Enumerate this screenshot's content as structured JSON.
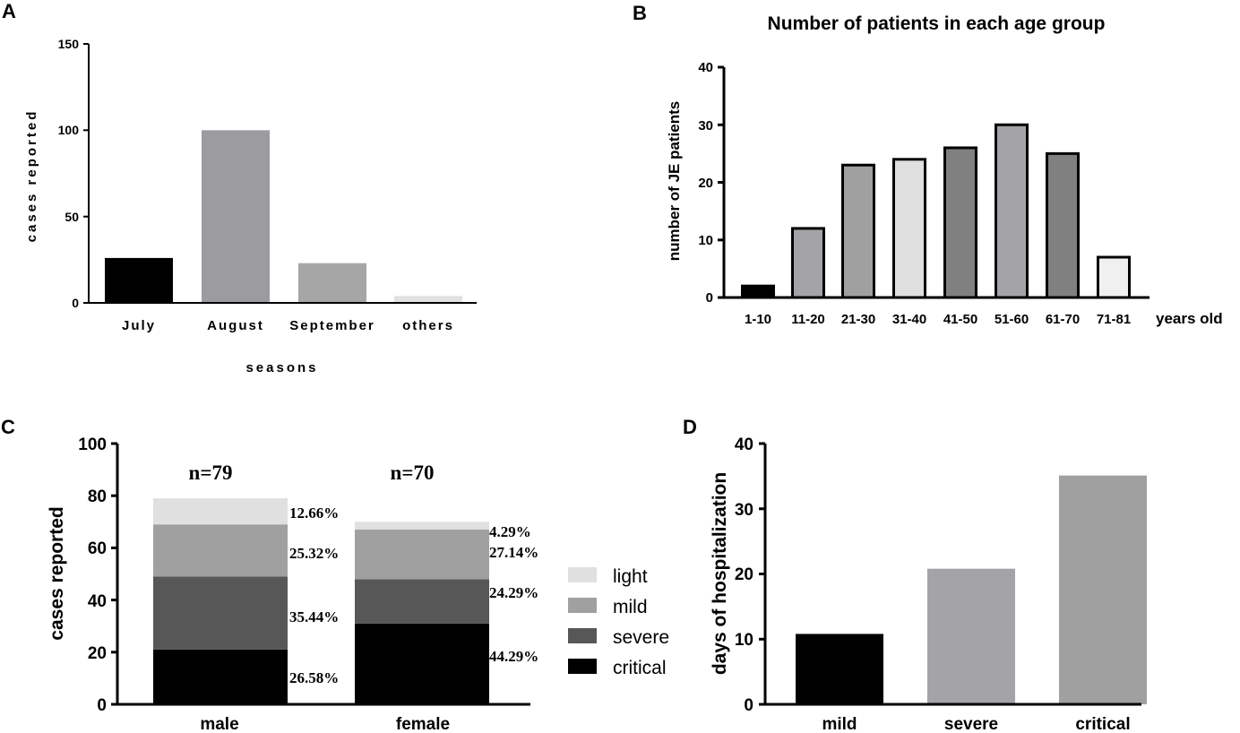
{
  "chart_data": [
    {
      "panel": "A",
      "type": "bar",
      "title": "",
      "xlabel": "seasons",
      "ylabel": "cases reported",
      "categories": [
        "July",
        "August",
        "September",
        "others"
      ],
      "values": [
        26,
        100,
        23,
        4
      ],
      "colors": [
        "#000000",
        "#9c9ca0",
        "#a6a6a6",
        "#e2e2e2"
      ],
      "ylim": [
        0,
        150
      ],
      "yticks": [
        "0",
        "50",
        "100",
        "150"
      ]
    },
    {
      "panel": "B",
      "type": "bar",
      "title": "Number of patients in each age group",
      "xlabel": "years old",
      "ylabel": "number of JE patients",
      "categories": [
        "1-10",
        "11-20",
        "21-30",
        "31-40",
        "41-50",
        "51-60",
        "61-70",
        "71-81"
      ],
      "values": [
        2,
        12,
        23,
        24,
        26,
        30,
        25,
        7
      ],
      "colors": [
        "#000000",
        "#a3a3a8",
        "#a0a0a0",
        "#e0e0e0",
        "#808080",
        "#a3a3a8",
        "#808080",
        "#f0f0f0"
      ],
      "ylim": [
        0,
        40
      ],
      "yticks": [
        "0",
        "10",
        "20",
        "30",
        "40"
      ]
    },
    {
      "panel": "C",
      "type": "bar",
      "stacked": true,
      "title": "",
      "xlabel": "",
      "ylabel": "cases reported",
      "categories": [
        "male",
        "female"
      ],
      "totals": [
        "n=79",
        "n=70"
      ],
      "series": [
        {
          "name": "critical",
          "values": [
            21,
            31
          ],
          "percents": [
            "26.58%",
            "44.29%"
          ],
          "color": "#000000"
        },
        {
          "name": "severe",
          "values": [
            28,
            17
          ],
          "percents": [
            "35.44%",
            "24.29%"
          ],
          "color": "#575757"
        },
        {
          "name": "mild",
          "values": [
            20,
            19
          ],
          "percents": [
            "25.32%",
            "27.14%"
          ],
          "color": "#a0a0a0"
        },
        {
          "name": "light",
          "values": [
            10,
            3
          ],
          "percents": [
            "12.66%",
            "4.29%"
          ],
          "color": "#e0e0e0"
        }
      ],
      "legend": [
        "light",
        "mild",
        "severe",
        "critical"
      ],
      "ylim": [
        0,
        100
      ],
      "yticks": [
        "0",
        "20",
        "40",
        "60",
        "80",
        "100"
      ]
    },
    {
      "panel": "D",
      "type": "bar",
      "title": "",
      "xlabel": "",
      "ylabel": "days of hospitalization",
      "categories": [
        "mild",
        "severe",
        "critical"
      ],
      "values": [
        10.8,
        20.8,
        35.1
      ],
      "colors": [
        "#000000",
        "#a3a3a8",
        "#a0a0a0"
      ],
      "ylim": [
        0,
        40
      ],
      "yticks": [
        "0",
        "10",
        "20",
        "30",
        "40"
      ]
    }
  ]
}
